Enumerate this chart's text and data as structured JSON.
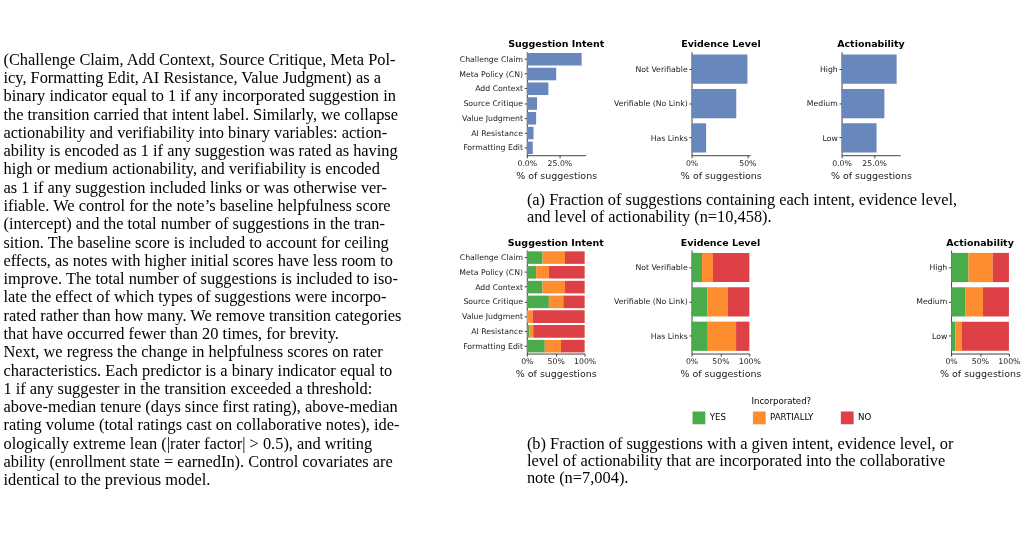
{
  "chart_data": [
    {
      "type": "other",
      "annotations": [
        "(Challenge Claim, Add Context, Source Critique, Meta Pol-",
        "icy, Formatting Edit, AI Resistance, Value Judgment) as a",
        "binary indicator equal to 1 if any incorporated suggestion in",
        "the transition carried that intent label. Similarly, we collapse",
        "actionability and verifiability into binary variables: action-",
        "ability is encoded as 1 if any suggestion was rated as having",
        "high or medium actionability, and verifiability is encoded",
        "as 1 if any suggestion included links or was otherwise ver-",
        "ifiable. We control for the note’s baseline helpfulness score",
        "(intercept) and the total number of suggestions in the tran-",
        "sition. The baseline score is included to account for ceiling",
        "effects, as notes with higher initial scores have less room to",
        "improve. The total number of suggestions is included to iso-",
        "late the effect of which types of suggestions were incorpo-",
        "rated rather than how many. We remove transition categories",
        "that have occurred fewer than 20 times, for brevity.",
        "    Next, we regress the change in helpfulness scores on rater",
        "characteristics. Each predictor is a binary indicator equal to",
        "1 if any suggester in the transition exceeded a threshold:",
        "above-median tenure (days since first rating), above-median",
        "rating volume (total ratings cast on collaborative notes), ide-",
        "ologically extreme lean (|rater factor| > 0.5), and writing",
        "ability (enrollment state = earnedIn). Control covariates are",
        "identical to the previous model."
      ]
    },
    {
      "type": "bar",
      "orientation": "horizontal",
      "title": "Suggestion Intent",
      "xlabel": "% of suggestions",
      "categories": [
        "Challenge Claim",
        "Meta Policy (CN)",
        "Add Context",
        "Source Critique",
        "Value Judgment",
        "AI Resistance",
        "Formatting Edit"
      ],
      "values": [
        42,
        22.5,
        16.5,
        7.8,
        7.1,
        5.1,
        4.5
      ],
      "color": "#6787bd",
      "xlim": [
        0,
        45
      ],
      "xticks": [
        {
          "value": 0,
          "label": "0.0%"
        },
        {
          "value": 25,
          "label": "25.0%"
        }
      ],
      "annotations": [
        "(a) Fraction of suggestions containing each intent, evidence level,",
        "and level of actionability (n=10,458)."
      ]
    },
    {
      "type": "bar",
      "orientation": "horizontal",
      "title": "Evidence Level",
      "xlabel": "% of suggestions",
      "categories": [
        "Not Verifiable",
        "Verifiable (No Link)",
        "Has Links"
      ],
      "values": [
        50,
        40,
        13
      ],
      "color": "#6787bd",
      "xlim": [
        0,
        52.5
      ],
      "xticks": [
        {
          "value": 0,
          "label": "0%"
        },
        {
          "value": 50,
          "label": "50%"
        }
      ]
    },
    {
      "type": "bar",
      "orientation": "horizontal",
      "title": "Actionability",
      "xlabel": "% of suggestions",
      "categories": [
        "High",
        "Medium",
        "Low"
      ],
      "values": [
        42.2,
        32.8,
        26.8
      ],
      "color": "#6787bd",
      "xlim": [
        0,
        45
      ],
      "xticks": [
        {
          "value": 0,
          "label": "0.0%"
        },
        {
          "value": 25,
          "label": "25.0%"
        }
      ]
    },
    {
      "type": "bar",
      "orientation": "horizontal",
      "stacked": true,
      "title": "Suggestion Intent",
      "xlabel": "% of suggestions",
      "categories": [
        "Challenge Claim",
        "Meta Policy (CN)",
        "Add Context",
        "Source Critique",
        "Value Judgment",
        "AI Resistance",
        "Formatting Edit"
      ],
      "series": [
        {
          "color": "#4aab4a",
          "values": [
            27,
            16,
            27,
            38,
            0,
            4,
            31
          ]
        },
        {
          "color": "#fd8d2f",
          "values": [
            39,
            22,
            39,
            25,
            10,
            7,
            28
          ]
        },
        {
          "color": "#dd4146",
          "values": [
            34,
            62,
            34,
            37,
            90,
            89,
            41
          ]
        }
      ],
      "xlim": [
        0,
        100
      ],
      "xticks": [
        {
          "value": 0,
          "label": "0%"
        },
        {
          "value": 50,
          "label": "50%"
        },
        {
          "value": 100,
          "label": "100%"
        }
      ],
      "annotations": [
        "(b) Fraction of suggestions with a given intent, evidence level, or",
        "level of actionability that are incorporated into the collaborative",
        "note (n=7,004)."
      ]
    },
    {
      "type": "bar",
      "orientation": "horizontal",
      "stacked": true,
      "title": "Evidence Level",
      "xlabel": "% of suggestions",
      "legend": "bottom",
      "legend_title": "Incorporated?",
      "categories": [
        "Not Verifiable",
        "Verifiable (No Link)",
        "Has Links"
      ],
      "series": [
        {
          "name": "YES",
          "color": "#4aab4a",
          "values": [
            18,
            27,
            28
          ]
        },
        {
          "name": "PARTIALLY",
          "color": "#fd8d2f",
          "values": [
            19,
            36,
            49
          ]
        },
        {
          "name": "NO",
          "color": "#dd4146",
          "values": [
            63,
            37,
            23
          ]
        }
      ],
      "xlim": [
        0,
        100
      ],
      "xticks": [
        {
          "value": 0,
          "label": "0%"
        },
        {
          "value": 50,
          "label": "50%"
        },
        {
          "value": 100,
          "label": "100%"
        }
      ]
    },
    {
      "type": "bar",
      "orientation": "horizontal",
      "stacked": true,
      "title": "Actionability",
      "xlabel": "% of suggestions",
      "categories": [
        "High",
        "Medium",
        "Low"
      ],
      "series": [
        {
          "color": "#4aab4a",
          "values": [
            30,
            25,
            7
          ]
        },
        {
          "color": "#fd8d2f",
          "values": [
            42,
            30,
            11
          ]
        },
        {
          "color": "#dd4146",
          "values": [
            28,
            45,
            82
          ]
        }
      ],
      "xlim": [
        0,
        100
      ],
      "xticks": [
        {
          "value": 0,
          "label": "0%"
        },
        {
          "value": 50,
          "label": "50%"
        },
        {
          "value": 100,
          "label": "100%"
        }
      ]
    }
  ]
}
